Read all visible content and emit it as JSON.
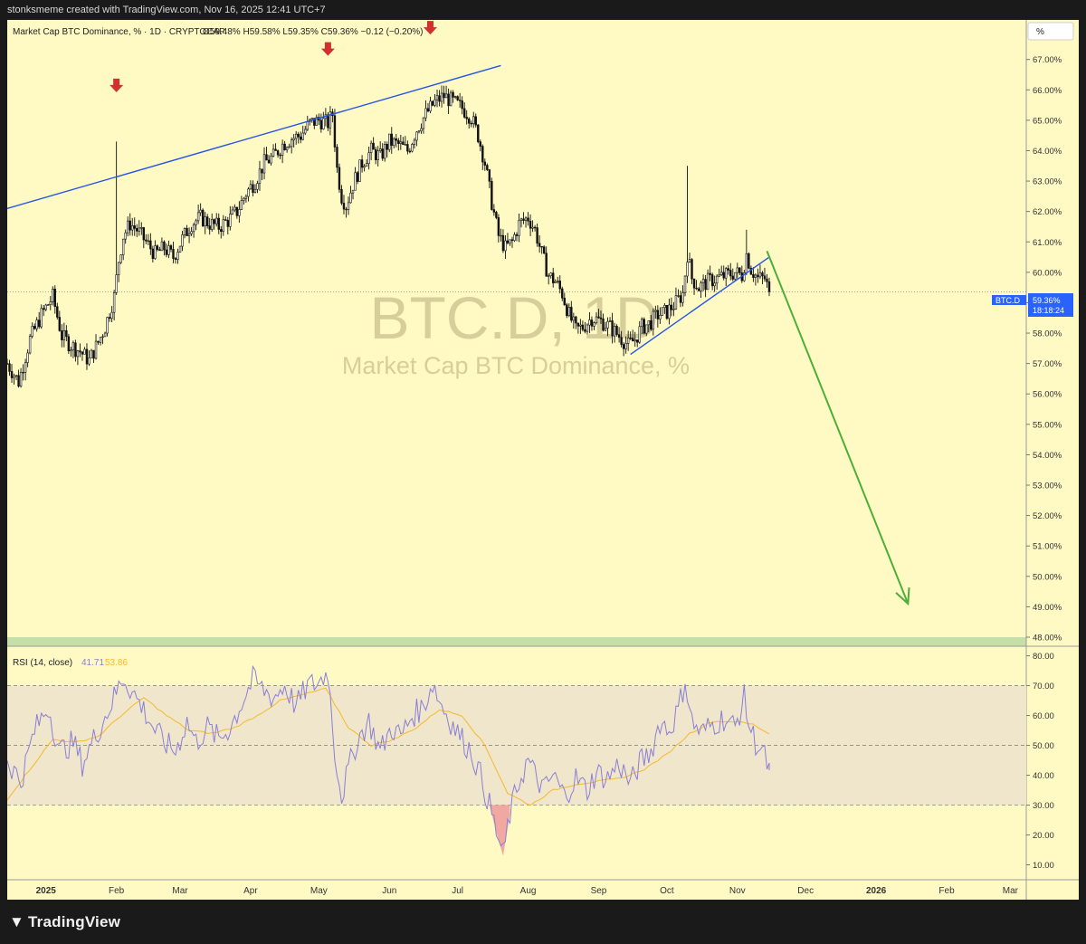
{
  "header": {
    "credit": "stonksmeme created with TradingView.com, Nov 16, 2025 12:41 UTC+7"
  },
  "legend": {
    "title": "Market Cap BTC Dominance, % · 1D · CRYPTOCAP",
    "ohlc": "O59.48%  H59.58%  L59.35%  C59.36%  −0.12 (−0.20%)",
    "unit_button": "%"
  },
  "watermark": {
    "symbol": "BTC.D, 1D",
    "name": "Market Cap BTC Dominance, %"
  },
  "price_tag": {
    "label": "BTC.D",
    "value": "59.36%",
    "countdown": "18:18:24"
  },
  "rsi": {
    "label": "RSI (14, close)",
    "value_rsi": "41.71",
    "value_ma": "53.86"
  },
  "footer": {
    "brand": "TradingView"
  },
  "colors": {
    "background": "#fff9c4",
    "candle": "#111111",
    "trendline": "#2454e6",
    "projection": "#4caf3a",
    "arrow": "#d32f2f",
    "rsi_line": "#8a7fd6",
    "rsi_ma": "#f5b92a",
    "rsi_band": "#f0e6cc",
    "price_tag": "#2962ff"
  },
  "chart_data": [
    {
      "type": "candlestick",
      "title": "Market Cap BTC Dominance, % · 1D · CRYPTOCAP",
      "ylabel": "%",
      "y_ticks": [
        "48.00%",
        "49.00%",
        "50.00%",
        "51.00%",
        "52.00%",
        "53.00%",
        "54.00%",
        "55.00%",
        "56.00%",
        "57.00%",
        "58.00%",
        "59.00%",
        "60.00%",
        "61.00%",
        "62.00%",
        "63.00%",
        "64.00%",
        "65.00%",
        "66.00%",
        "67.00%"
      ],
      "ylim": [
        48,
        68.3
      ],
      "x_ticks": [
        "2025",
        "Feb",
        "Mar",
        "Apr",
        "May",
        "Jun",
        "Jul",
        "Aug",
        "Sep",
        "Oct",
        "Nov",
        "Dec",
        "2026",
        "Feb",
        "Mar"
      ],
      "x_range": [
        "2024-12-15",
        "2026-03-08"
      ],
      "grid": false,
      "close_series": [
        [
          "2024-12-15",
          57.0
        ],
        [
          "2024-12-20",
          56.4
        ],
        [
          "2024-12-25",
          57.8
        ],
        [
          "2024-12-30",
          58.6
        ],
        [
          "2025-01-04",
          59.2
        ],
        [
          "2025-01-08",
          57.9
        ],
        [
          "2025-01-12",
          57.6
        ],
        [
          "2025-01-16",
          57.4
        ],
        [
          "2025-01-20",
          57.1
        ],
        [
          "2025-01-24",
          57.7
        ],
        [
          "2025-01-27",
          58.2
        ],
        [
          "2025-01-29",
          58.7
        ],
        [
          "2025-01-31",
          59.2
        ],
        [
          "2025-02-02",
          60.4
        ],
        [
          "2025-02-04",
          61.2
        ],
        [
          "2025-02-07",
          61.6
        ],
        [
          "2025-02-10",
          61.4
        ],
        [
          "2025-02-14",
          61.0
        ],
        [
          "2025-02-18",
          60.6
        ],
        [
          "2025-02-22",
          60.8
        ],
        [
          "2025-02-26",
          60.5
        ],
        [
          "2025-03-02",
          61.1
        ],
        [
          "2025-03-06",
          61.6
        ],
        [
          "2025-03-10",
          61.8
        ],
        [
          "2025-03-14",
          61.6
        ],
        [
          "2025-03-18",
          61.5
        ],
        [
          "2025-03-22",
          61.7
        ],
        [
          "2025-03-26",
          62.0
        ],
        [
          "2025-03-30",
          62.6
        ],
        [
          "2025-04-03",
          63.0
        ],
        [
          "2025-04-07",
          63.6
        ],
        [
          "2025-04-11",
          63.8
        ],
        [
          "2025-04-15",
          64.2
        ],
        [
          "2025-04-19",
          64.4
        ],
        [
          "2025-04-23",
          64.5
        ],
        [
          "2025-04-27",
          64.9
        ],
        [
          "2025-05-01",
          65.0
        ],
        [
          "2025-05-05",
          64.9
        ],
        [
          "2025-05-07",
          65.2
        ],
        [
          "2025-05-09",
          63.4
        ],
        [
          "2025-05-11",
          62.5
        ],
        [
          "2025-05-13",
          62.2
        ],
        [
          "2025-05-16",
          62.9
        ],
        [
          "2025-05-20",
          63.6
        ],
        [
          "2025-05-24",
          64.0
        ],
        [
          "2025-05-28",
          63.8
        ],
        [
          "2025-06-01",
          64.3
        ],
        [
          "2025-06-05",
          64.2
        ],
        [
          "2025-06-09",
          64.0
        ],
        [
          "2025-06-13",
          64.7
        ],
        [
          "2025-06-17",
          65.2
        ],
        [
          "2025-06-21",
          65.6
        ],
        [
          "2025-06-25",
          65.8
        ],
        [
          "2025-06-29",
          65.6
        ],
        [
          "2025-07-03",
          65.4
        ],
        [
          "2025-07-07",
          65.1
        ],
        [
          "2025-07-10",
          64.5
        ],
        [
          "2025-07-13",
          63.6
        ],
        [
          "2025-07-16",
          62.3
        ],
        [
          "2025-07-19",
          61.2
        ],
        [
          "2025-07-22",
          60.8
        ],
        [
          "2025-07-25",
          61.0
        ],
        [
          "2025-07-28",
          61.6
        ],
        [
          "2025-08-01",
          61.8
        ],
        [
          "2025-08-04",
          61.4
        ],
        [
          "2025-08-07",
          60.6
        ],
        [
          "2025-08-10",
          59.9
        ],
        [
          "2025-08-13",
          59.7
        ],
        [
          "2025-08-16",
          59.3
        ],
        [
          "2025-08-19",
          58.6
        ],
        [
          "2025-08-22",
          58.1
        ],
        [
          "2025-08-25",
          58.2
        ],
        [
          "2025-08-29",
          58.5
        ],
        [
          "2025-09-02",
          58.4
        ],
        [
          "2025-09-06",
          58.2
        ],
        [
          "2025-09-10",
          57.9
        ],
        [
          "2025-09-14",
          57.6
        ],
        [
          "2025-09-17",
          57.8
        ],
        [
          "2025-09-20",
          58.2
        ],
        [
          "2025-09-23",
          58.3
        ],
        [
          "2025-09-27",
          58.6
        ],
        [
          "2025-10-01",
          58.7
        ],
        [
          "2025-10-05",
          59.0
        ],
        [
          "2025-10-08",
          59.3
        ],
        [
          "2025-10-10",
          60.6
        ],
        [
          "2025-10-12",
          59.8
        ],
        [
          "2025-10-15",
          59.5
        ],
        [
          "2025-10-19",
          59.7
        ],
        [
          "2025-10-23",
          59.8
        ],
        [
          "2025-10-27",
          59.9
        ],
        [
          "2025-10-31",
          60.0
        ],
        [
          "2025-11-03",
          59.9
        ],
        [
          "2025-11-05",
          60.6
        ],
        [
          "2025-11-07",
          60.1
        ],
        [
          "2025-11-10",
          59.8
        ],
        [
          "2025-11-13",
          59.8
        ],
        [
          "2025-11-15",
          59.36
        ]
      ],
      "spikes": [
        {
          "date": "2025-02-01",
          "high": 64.3
        },
        {
          "date": "2025-10-10",
          "high": 63.5
        },
        {
          "date": "2025-11-05",
          "high": 61.4
        }
      ],
      "last_close": 59.36,
      "annotations": [
        {
          "kind": "trendline",
          "from": [
            "2024-12-15",
            62.1
          ],
          "to": [
            "2025-07-20",
            66.8
          ]
        },
        {
          "kind": "trendline",
          "from": [
            "2025-09-15",
            57.3
          ],
          "to": [
            "2025-11-15",
            60.5
          ]
        },
        {
          "kind": "projection_arrow",
          "from": [
            "2025-11-14",
            60.7
          ],
          "to": [
            "2026-01-15",
            49.1
          ]
        },
        {
          "kind": "marker_arrow",
          "date": "2025-02-01",
          "y": 66.1
        },
        {
          "kind": "marker_arrow",
          "date": "2025-05-05",
          "y": 67.3
        },
        {
          "kind": "marker_arrow",
          "date": "2025-06-19",
          "y": 68.0
        }
      ]
    },
    {
      "type": "line",
      "title": "RSI (14, close)",
      "y_ticks": [
        "10.00",
        "20.00",
        "30.00",
        "40.00",
        "50.00",
        "60.00",
        "70.00",
        "80.00"
      ],
      "ylim": [
        5,
        82
      ],
      "bands": [
        30,
        50,
        70
      ],
      "series": [
        {
          "name": "RSI",
          "values": [
            [
              "2024-12-15",
              45
            ],
            [
              "2024-12-21",
              38
            ],
            [
              "2024-12-27",
              55
            ],
            [
              "2025-01-02",
              63
            ],
            [
              "2025-01-07",
              48
            ],
            [
              "2025-01-13",
              51
            ],
            [
              "2025-01-17",
              44
            ],
            [
              "2025-01-22",
              52
            ],
            [
              "2025-01-26",
              58
            ],
            [
              "2025-01-31",
              66
            ],
            [
              "2025-02-04",
              73
            ],
            [
              "2025-02-08",
              68
            ],
            [
              "2025-02-13",
              62
            ],
            [
              "2025-02-18",
              55
            ],
            [
              "2025-02-22",
              51
            ],
            [
              "2025-02-27",
              48
            ],
            [
              "2025-03-04",
              58
            ],
            [
              "2025-03-08",
              51
            ],
            [
              "2025-03-13",
              56
            ],
            [
              "2025-03-18",
              52
            ],
            [
              "2025-03-23",
              56
            ],
            [
              "2025-03-28",
              64
            ],
            [
              "2025-04-02",
              72
            ],
            [
              "2025-04-06",
              69
            ],
            [
              "2025-04-11",
              66
            ],
            [
              "2025-04-16",
              70
            ],
            [
              "2025-04-21",
              63
            ],
            [
              "2025-04-26",
              70
            ],
            [
              "2025-05-01",
              71
            ],
            [
              "2025-05-05",
              75
            ],
            [
              "2025-05-08",
              48
            ],
            [
              "2025-05-11",
              33
            ],
            [
              "2025-05-14",
              42
            ],
            [
              "2025-05-18",
              52
            ],
            [
              "2025-05-23",
              58
            ],
            [
              "2025-05-28",
              48
            ],
            [
              "2025-06-02",
              56
            ],
            [
              "2025-06-06",
              53
            ],
            [
              "2025-06-11",
              60
            ],
            [
              "2025-06-16",
              63
            ],
            [
              "2025-06-20",
              71
            ],
            [
              "2025-06-23",
              65
            ],
            [
              "2025-06-28",
              58
            ],
            [
              "2025-07-03",
              52
            ],
            [
              "2025-07-07",
              48
            ],
            [
              "2025-07-11",
              40
            ],
            [
              "2025-07-15",
              30
            ],
            [
              "2025-07-18",
              21
            ],
            [
              "2025-07-21",
              13
            ],
            [
              "2025-07-24",
              27
            ],
            [
              "2025-07-28",
              38
            ],
            [
              "2025-08-01",
              45
            ],
            [
              "2025-08-04",
              40
            ],
            [
              "2025-08-08",
              35
            ],
            [
              "2025-08-12",
              40
            ],
            [
              "2025-08-17",
              33
            ],
            [
              "2025-08-22",
              39
            ],
            [
              "2025-08-27",
              35
            ],
            [
              "2025-08-31",
              41
            ],
            [
              "2025-09-05",
              39
            ],
            [
              "2025-09-10",
              44
            ],
            [
              "2025-09-15",
              37
            ],
            [
              "2025-09-19",
              44
            ],
            [
              "2025-09-24",
              48
            ],
            [
              "2025-09-28",
              58
            ],
            [
              "2025-10-02",
              55
            ],
            [
              "2025-10-06",
              62
            ],
            [
              "2025-10-09",
              72
            ],
            [
              "2025-10-12",
              58
            ],
            [
              "2025-10-16",
              54
            ],
            [
              "2025-10-21",
              57
            ],
            [
              "2025-10-26",
              59
            ],
            [
              "2025-10-31",
              56
            ],
            [
              "2025-11-04",
              66
            ],
            [
              "2025-11-06",
              57
            ],
            [
              "2025-11-09",
              51
            ],
            [
              "2025-11-12",
              48
            ],
            [
              "2025-11-15",
              41.71
            ]
          ]
        },
        {
          "name": "RSI-based MA",
          "values": [
            [
              "2024-12-15",
              32
            ],
            [
              "2024-12-25",
              42
            ],
            [
              "2025-01-04",
              52
            ],
            [
              "2025-01-14",
              51
            ],
            [
              "2025-01-24",
              53
            ],
            [
              "2025-02-03",
              60
            ],
            [
              "2025-02-13",
              66
            ],
            [
              "2025-02-23",
              60
            ],
            [
              "2025-03-05",
              55
            ],
            [
              "2025-03-15",
              54
            ],
            [
              "2025-03-25",
              56
            ],
            [
              "2025-04-04",
              60
            ],
            [
              "2025-04-14",
              65
            ],
            [
              "2025-04-24",
              67
            ],
            [
              "2025-05-04",
              69
            ],
            [
              "2025-05-14",
              56
            ],
            [
              "2025-05-24",
              50
            ],
            [
              "2025-06-03",
              52
            ],
            [
              "2025-06-13",
              56
            ],
            [
              "2025-06-23",
              62
            ],
            [
              "2025-07-03",
              60
            ],
            [
              "2025-07-13",
              50
            ],
            [
              "2025-07-23",
              34
            ],
            [
              "2025-08-02",
              30
            ],
            [
              "2025-08-12",
              35
            ],
            [
              "2025-08-22",
              37
            ],
            [
              "2025-09-01",
              38
            ],
            [
              "2025-09-11",
              39
            ],
            [
              "2025-09-21",
              42
            ],
            [
              "2025-10-01",
              47
            ],
            [
              "2025-10-11",
              54
            ],
            [
              "2025-10-21",
              58
            ],
            [
              "2025-10-31",
              58
            ],
            [
              "2025-11-08",
              57
            ],
            [
              "2025-11-15",
              53.86
            ]
          ]
        }
      ]
    }
  ]
}
